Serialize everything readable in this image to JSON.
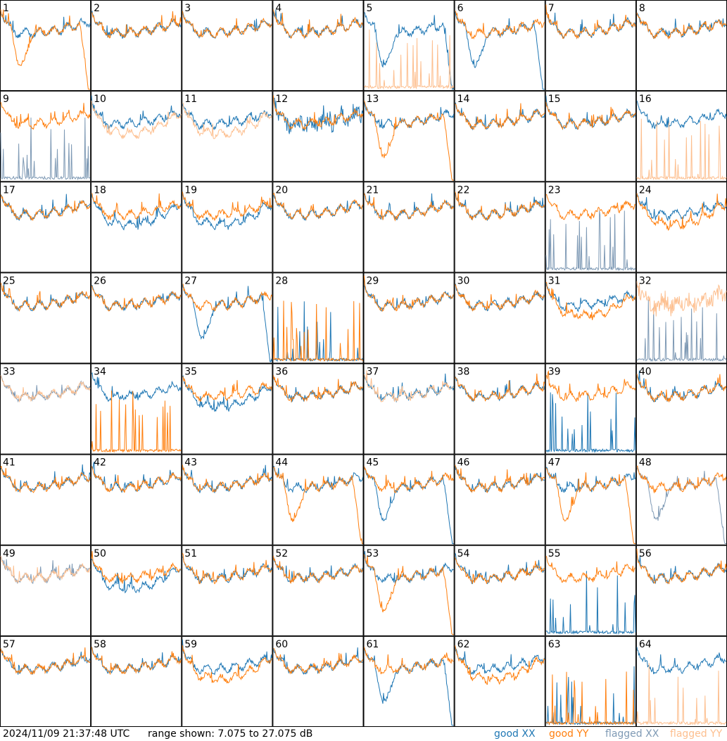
{
  "footer": {
    "timestamp": "2024/11/09 21:37:48 UTC",
    "range_text": "range shown: 7.075 to 27.075 dB"
  },
  "legend": [
    {
      "label_a": "good ",
      "label_b": "XX",
      "color": "#1f77b4"
    },
    {
      "label_a": "good ",
      "label_b": "YY",
      "color": "#ff7f0e"
    },
    {
      "label_a": "flagged ",
      "label_b": "XX",
      "color": "#7f9ab5"
    },
    {
      "label_a": "flagged ",
      "label_b": "YY",
      "color": "#fdbf8f"
    }
  ],
  "chart_data": {
    "type": "line",
    "grid": {
      "rows": 8,
      "cols": 8
    },
    "ylim_db": [
      7.075,
      27.075
    ],
    "colors": {
      "good_xx": "#1f77b4",
      "good_yy": "#ff7f0e",
      "flagged_xx": "#7f9ab5",
      "flagged_yy": "#fdbf8f"
    },
    "panels": [
      {
        "label": "1",
        "xx": "good",
        "yy": "good",
        "xx_shape": "normal",
        "yy_shape": "dip",
        "yy_level": 0.9
      },
      {
        "label": "2",
        "xx": "good",
        "yy": "good",
        "xx_shape": "normal",
        "yy_shape": "normal"
      },
      {
        "label": "3",
        "xx": "good",
        "yy": "good",
        "xx_shape": "normal",
        "yy_shape": "normal"
      },
      {
        "label": "4",
        "xx": "good",
        "yy": "good",
        "xx_shape": "normal",
        "yy_shape": "normal"
      },
      {
        "label": "5",
        "xx": "good",
        "yy": "flagged",
        "xx_shape": "dip",
        "yy_shape": "spikes"
      },
      {
        "label": "6",
        "xx": "good",
        "yy": "good",
        "xx_shape": "dip",
        "yy_shape": "normal"
      },
      {
        "label": "7",
        "xx": "good",
        "yy": "good",
        "xx_shape": "normal",
        "yy_shape": "normal"
      },
      {
        "label": "8",
        "xx": "good",
        "yy": "good",
        "xx_shape": "normal",
        "yy_shape": "normal"
      },
      {
        "label": "9",
        "xx": "flagged",
        "yy": "good",
        "xx_shape": "spikes",
        "yy_shape": "normal"
      },
      {
        "label": "10",
        "xx": "good",
        "yy": "flagged",
        "xx_shape": "normal",
        "yy_shape": "low"
      },
      {
        "label": "11",
        "xx": "good",
        "yy": "flagged",
        "xx_shape": "normal",
        "yy_shape": "low"
      },
      {
        "label": "12",
        "xx": "good",
        "yy": "good",
        "xx_shape": "noisy",
        "yy_shape": "normal"
      },
      {
        "label": "13",
        "xx": "good",
        "yy": "good",
        "xx_shape": "normal",
        "yy_shape": "dip"
      },
      {
        "label": "14",
        "xx": "good",
        "yy": "good",
        "xx_shape": "normal",
        "yy_shape": "normal"
      },
      {
        "label": "15",
        "xx": "good",
        "yy": "good",
        "xx_shape": "normal",
        "yy_shape": "normal"
      },
      {
        "label": "16",
        "xx": "good",
        "yy": "flagged",
        "xx_shape": "normal",
        "yy_shape": "spikes"
      },
      {
        "label": "17",
        "xx": "good",
        "yy": "good",
        "xx_shape": "normal",
        "yy_shape": "normal"
      },
      {
        "label": "18",
        "xx": "good",
        "yy": "good",
        "xx_shape": "low",
        "yy_shape": "normal"
      },
      {
        "label": "19",
        "xx": "good",
        "yy": "good",
        "xx_shape": "low",
        "yy_shape": "normal"
      },
      {
        "label": "20",
        "xx": "good",
        "yy": "good",
        "xx_shape": "normal",
        "yy_shape": "normal"
      },
      {
        "label": "21",
        "xx": "good",
        "yy": "good",
        "xx_shape": "normal",
        "yy_shape": "normal"
      },
      {
        "label": "22",
        "xx": "good",
        "yy": "good",
        "xx_shape": "normal",
        "yy_shape": "normal"
      },
      {
        "label": "23",
        "xx": "flagged",
        "yy": "good",
        "xx_shape": "spikes",
        "yy_shape": "normal"
      },
      {
        "label": "24",
        "xx": "good",
        "yy": "good",
        "xx_shape": "normal",
        "yy_shape": "low"
      },
      {
        "label": "25",
        "xx": "good",
        "yy": "good",
        "xx_shape": "normal",
        "yy_shape": "normal"
      },
      {
        "label": "26",
        "xx": "good",
        "yy": "good",
        "xx_shape": "normal",
        "yy_shape": "normal"
      },
      {
        "label": "27",
        "xx": "good",
        "yy": "good",
        "xx_shape": "dip",
        "yy_shape": "normal"
      },
      {
        "label": "28",
        "xx": "good",
        "yy": "good",
        "xx_shape": "spikes",
        "yy_shape": "spikes"
      },
      {
        "label": "29",
        "xx": "good",
        "yy": "good",
        "xx_shape": "normal",
        "yy_shape": "normal"
      },
      {
        "label": "30",
        "xx": "good",
        "yy": "good",
        "xx_shape": "normal",
        "yy_shape": "normal"
      },
      {
        "label": "31",
        "xx": "good",
        "yy": "good",
        "xx_shape": "normal",
        "yy_shape": "low"
      },
      {
        "label": "32",
        "xx": "flagged",
        "yy": "flagged",
        "xx_shape": "spikes",
        "yy_shape": "noisy"
      },
      {
        "label": "33",
        "xx": "flagged",
        "yy": "flagged",
        "xx_shape": "normal",
        "yy_shape": "normal"
      },
      {
        "label": "34",
        "xx": "good",
        "yy": "good",
        "xx_shape": "normal",
        "yy_shape": "spikes"
      },
      {
        "label": "35",
        "xx": "good",
        "yy": "good",
        "xx_shape": "low",
        "yy_shape": "normal"
      },
      {
        "label": "36",
        "xx": "good",
        "yy": "good",
        "xx_shape": "normal",
        "yy_shape": "normal"
      },
      {
        "label": "37",
        "xx": "good",
        "yy": "flagged",
        "xx_shape": "normal",
        "yy_shape": "normal"
      },
      {
        "label": "38",
        "xx": "good",
        "yy": "good",
        "xx_shape": "normal",
        "yy_shape": "normal"
      },
      {
        "label": "39",
        "xx": "good",
        "yy": "good",
        "xx_shape": "spikes",
        "yy_shape": "normal"
      },
      {
        "label": "40",
        "xx": "good",
        "yy": "good",
        "xx_shape": "normal",
        "yy_shape": "normal"
      },
      {
        "label": "41",
        "xx": "good",
        "yy": "good",
        "xx_shape": "normal",
        "yy_shape": "normal"
      },
      {
        "label": "42",
        "xx": "good",
        "yy": "good",
        "xx_shape": "normal",
        "yy_shape": "normal"
      },
      {
        "label": "43",
        "xx": "good",
        "yy": "good",
        "xx_shape": "normal",
        "yy_shape": "normal"
      },
      {
        "label": "44",
        "xx": "good",
        "yy": "good",
        "xx_shape": "normal",
        "yy_shape": "dip"
      },
      {
        "label": "45",
        "xx": "good",
        "yy": "good",
        "xx_shape": "dip",
        "yy_shape": "normal"
      },
      {
        "label": "46",
        "xx": "good",
        "yy": "good",
        "xx_shape": "normal",
        "yy_shape": "normal"
      },
      {
        "label": "47",
        "xx": "good",
        "yy": "good",
        "xx_shape": "normal",
        "yy_shape": "dip"
      },
      {
        "label": "48",
        "xx": "flagged",
        "yy": "good",
        "xx_shape": "dip",
        "yy_shape": "normal"
      },
      {
        "label": "49",
        "xx": "flagged",
        "yy": "flagged",
        "xx_shape": "normal",
        "yy_shape": "normal"
      },
      {
        "label": "50",
        "xx": "good",
        "yy": "good",
        "xx_shape": "low",
        "yy_shape": "normal"
      },
      {
        "label": "51",
        "xx": "good",
        "yy": "good",
        "xx_shape": "normal",
        "yy_shape": "normal"
      },
      {
        "label": "52",
        "xx": "good",
        "yy": "good",
        "xx_shape": "normal",
        "yy_shape": "normal"
      },
      {
        "label": "53",
        "xx": "good",
        "yy": "good",
        "xx_shape": "normal",
        "yy_shape": "dip"
      },
      {
        "label": "54",
        "xx": "good",
        "yy": "good",
        "xx_shape": "normal",
        "yy_shape": "normal"
      },
      {
        "label": "55",
        "xx": "good",
        "yy": "good",
        "xx_shape": "spikes",
        "yy_shape": "normal"
      },
      {
        "label": "56",
        "xx": "good",
        "yy": "good",
        "xx_shape": "normal",
        "yy_shape": "normal"
      },
      {
        "label": "57",
        "xx": "good",
        "yy": "good",
        "xx_shape": "normal",
        "yy_shape": "normal"
      },
      {
        "label": "58",
        "xx": "good",
        "yy": "good",
        "xx_shape": "normal",
        "yy_shape": "normal"
      },
      {
        "label": "59",
        "xx": "good",
        "yy": "good",
        "xx_shape": "normal",
        "yy_shape": "low"
      },
      {
        "label": "60",
        "xx": "good",
        "yy": "good",
        "xx_shape": "normal",
        "yy_shape": "normal"
      },
      {
        "label": "61",
        "xx": "good",
        "yy": "good",
        "xx_shape": "dip",
        "yy_shape": "normal"
      },
      {
        "label": "62",
        "xx": "good",
        "yy": "good",
        "xx_shape": "normal",
        "yy_shape": "low"
      },
      {
        "label": "63",
        "xx": "good",
        "yy": "good",
        "xx_shape": "spikes",
        "yy_shape": "spikes"
      },
      {
        "label": "64",
        "xx": "good",
        "yy": "flagged",
        "xx_shape": "normal",
        "yy_shape": "spikes"
      }
    ]
  }
}
